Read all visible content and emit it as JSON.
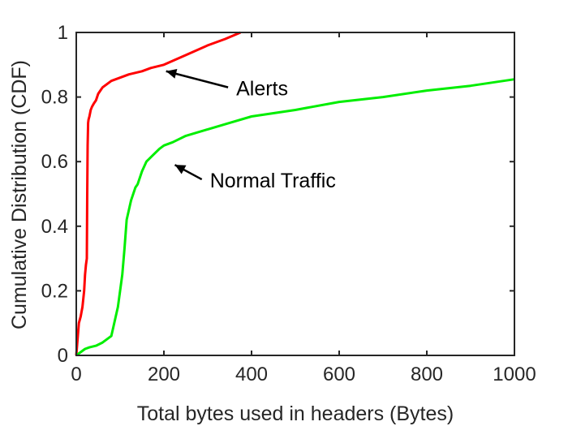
{
  "chart_data": {
    "type": "line",
    "title": "",
    "xlabel": "Total bytes used in headers (Bytes)",
    "ylabel": "Cumulative Distribution (CDF)",
    "xlim": [
      0,
      1000
    ],
    "ylim": [
      0,
      1
    ],
    "x_ticks": [
      "0",
      "200",
      "400",
      "600",
      "800",
      "1000"
    ],
    "y_ticks": [
      "0",
      "0.2",
      "0.4",
      "0.6",
      "0.8",
      "1"
    ],
    "grid": false,
    "legend": "none",
    "series": [
      {
        "name": "Alerts",
        "color": "#ff0000",
        "x": [
          0,
          3,
          6,
          10,
          14,
          18,
          20,
          22,
          24,
          25,
          26,
          27,
          28,
          30,
          33,
          36,
          40,
          45,
          50,
          55,
          60,
          70,
          80,
          100,
          120,
          150,
          170,
          200,
          250,
          300,
          340,
          375
        ],
        "y": [
          0,
          0.05,
          0.1,
          0.12,
          0.15,
          0.2,
          0.25,
          0.28,
          0.3,
          0.5,
          0.65,
          0.72,
          0.73,
          0.74,
          0.76,
          0.77,
          0.78,
          0.79,
          0.81,
          0.82,
          0.83,
          0.84,
          0.85,
          0.86,
          0.87,
          0.88,
          0.89,
          0.9,
          0.93,
          0.96,
          0.98,
          1.0
        ]
      },
      {
        "name": "Normal Traffic",
        "color": "#00ee00",
        "x": [
          0,
          10,
          20,
          30,
          45,
          60,
          80,
          85,
          90,
          95,
          100,
          105,
          110,
          115,
          120,
          125,
          130,
          135,
          140,
          145,
          150,
          160,
          175,
          190,
          200,
          220,
          250,
          300,
          350,
          400,
          500,
          600,
          700,
          800,
          900,
          1000
        ],
        "y": [
          0,
          0.01,
          0.02,
          0.025,
          0.03,
          0.04,
          0.06,
          0.09,
          0.12,
          0.15,
          0.2,
          0.25,
          0.33,
          0.42,
          0.45,
          0.48,
          0.5,
          0.52,
          0.53,
          0.55,
          0.57,
          0.6,
          0.62,
          0.64,
          0.65,
          0.66,
          0.68,
          0.7,
          0.72,
          0.74,
          0.76,
          0.785,
          0.8,
          0.82,
          0.835,
          0.855
        ]
      }
    ],
    "annotations": [
      {
        "text": "Alerts",
        "x": 365,
        "y": 0.805,
        "arrow_to": [
          205,
          0.88
        ]
      },
      {
        "text": "Normal Traffic",
        "x": 305,
        "y": 0.52,
        "arrow_to": [
          225,
          0.59
        ]
      }
    ]
  }
}
